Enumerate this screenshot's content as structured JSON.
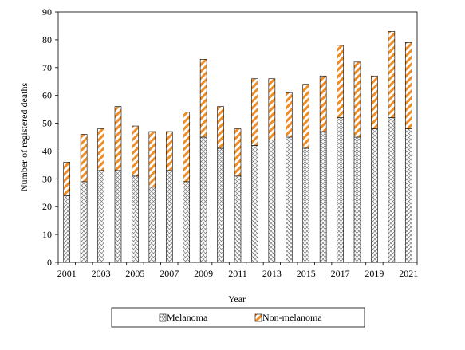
{
  "chart_data": {
    "type": "bar",
    "stacked": true,
    "xlabel": "Year",
    "ylabel": "Number of registered deaths",
    "ylim": [
      0,
      90
    ],
    "y_ticks": [
      0,
      10,
      20,
      30,
      40,
      50,
      60,
      70,
      80,
      90
    ],
    "categories": [
      "2001",
      "2002",
      "2003",
      "2004",
      "2005",
      "2006",
      "2007",
      "2008",
      "2009",
      "2010",
      "2011",
      "2012",
      "2013",
      "2014",
      "2015",
      "2016",
      "2017",
      "2018",
      "2019",
      "2020",
      "2021"
    ],
    "x_tick_labels": [
      "2001",
      "",
      "2003",
      "",
      "2005",
      "",
      "2007",
      "",
      "2009",
      "",
      "2011",
      "",
      "2013",
      "",
      "2015",
      "",
      "2017",
      "",
      "2019",
      "",
      "2021"
    ],
    "series": [
      {
        "name": "Melanoma",
        "values": [
          24,
          29,
          33,
          33,
          31,
          27,
          33,
          29,
          45,
          41,
          31,
          42,
          44,
          45,
          41,
          47,
          52,
          45,
          48,
          52,
          48
        ]
      },
      {
        "name": "Non-melanoma",
        "values": [
          12,
          17,
          15,
          23,
          18,
          20,
          14,
          25,
          28,
          15,
          17,
          24,
          22,
          16,
          23,
          20,
          26,
          27,
          19,
          31,
          31
        ]
      }
    ],
    "grid": false,
    "legend_position": "bottom"
  },
  "colors": {
    "non_melanoma_hatch": "#f08c24",
    "melanoma_hatch": "#7a7a7a",
    "axis": "#000000"
  }
}
